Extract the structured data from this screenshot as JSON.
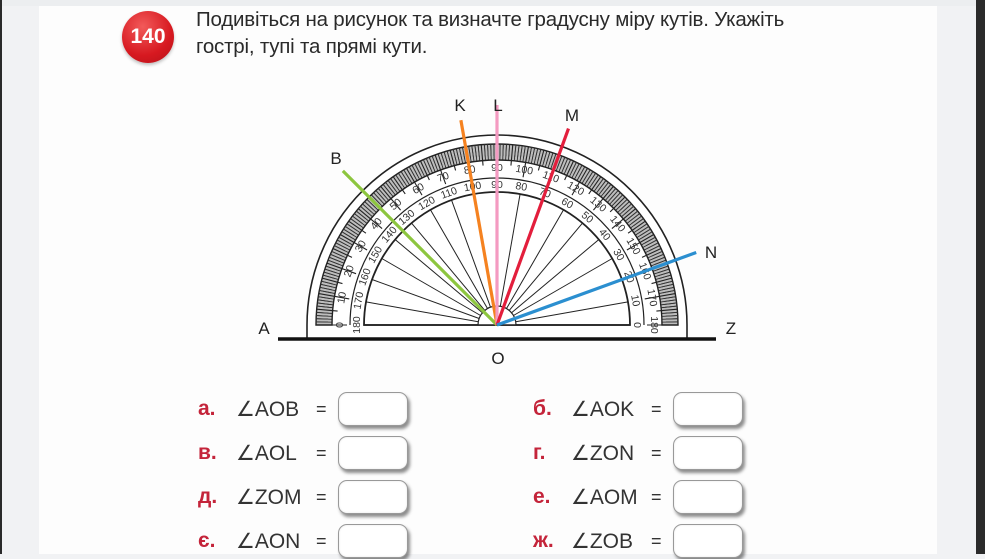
{
  "task": {
    "number": "140",
    "text_line1": "Подивіться на рисунок та визначте градусну міру кутів. Укажіть",
    "text_line2": "гострі, тупі та прямі кути."
  },
  "figure": {
    "points": {
      "A": "A",
      "Z": "Z",
      "O": "O",
      "B": "B",
      "K": "K",
      "L": "L",
      "M": "M",
      "N": "N"
    },
    "rays": [
      {
        "label": "B",
        "angle_from_OZ_deg": 135,
        "color": "#8dc63f"
      },
      {
        "label": "K",
        "angle_from_OZ_deg": 100,
        "color": "#f58220"
      },
      {
        "label": "L",
        "angle_from_OZ_deg": 90,
        "color": "#f49ac1"
      },
      {
        "label": "M",
        "angle_from_OZ_deg": 70,
        "color": "#e31e3c"
      },
      {
        "label": "N",
        "angle_from_OZ_deg": 20,
        "color": "#2b8fd0"
      }
    ],
    "outer_scale": [
      "0",
      "10",
      "20",
      "30",
      "40",
      "50",
      "60",
      "70",
      "80",
      "90",
      "100",
      "110",
      "120",
      "130",
      "140",
      "150",
      "160",
      "170",
      "180"
    ],
    "inner_scale": [
      "180",
      "170",
      "160",
      "150",
      "140",
      "130",
      "120",
      "110",
      "100",
      "90",
      "80",
      "70",
      "60",
      "50",
      "40",
      "30",
      "20",
      "10",
      "0"
    ]
  },
  "answers": {
    "left": [
      {
        "letter": "а.",
        "angle": "∠AOB",
        "eq": "="
      },
      {
        "letter": "в.",
        "angle": "∠AOL",
        "eq": "="
      },
      {
        "letter": "д.",
        "angle": "∠ZOM",
        "eq": "="
      },
      {
        "letter": "є.",
        "angle": "∠AON",
        "eq": "="
      }
    ],
    "right": [
      {
        "letter": "б.",
        "angle": "∠AOK",
        "eq": "="
      },
      {
        "letter": "г.",
        "angle": "∠ZON",
        "eq": "="
      },
      {
        "letter": "е.",
        "angle": "∠AOM",
        "eq": "="
      },
      {
        "letter": "ж.",
        "angle": "∠ZOB",
        "eq": "="
      }
    ]
  }
}
